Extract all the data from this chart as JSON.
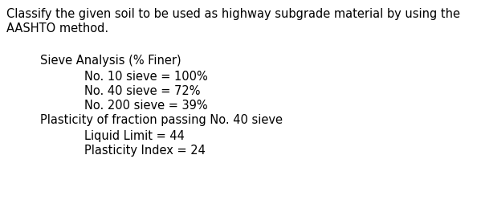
{
  "line1": "Classify the given soil to be used as highway subgrade material by using the",
  "line2": "AASHTO method.",
  "section1_header": "Sieve Analysis (% Finer)",
  "item1": "No. 10 sieve = 100%",
  "item2": "No. 40 sieve = 72%",
  "item3": "No. 200 sieve = 39%",
  "section2_header": "Plasticity of fraction passing No. 40 sieve",
  "item4": "Liquid Limit = 44",
  "item5": "Plasticity Index = 24",
  "bg_color": "#ffffff",
  "text_color": "#000000",
  "font_size_body": 10.5,
  "fig_width": 5.94,
  "fig_height": 2.59,
  "dpi": 100
}
